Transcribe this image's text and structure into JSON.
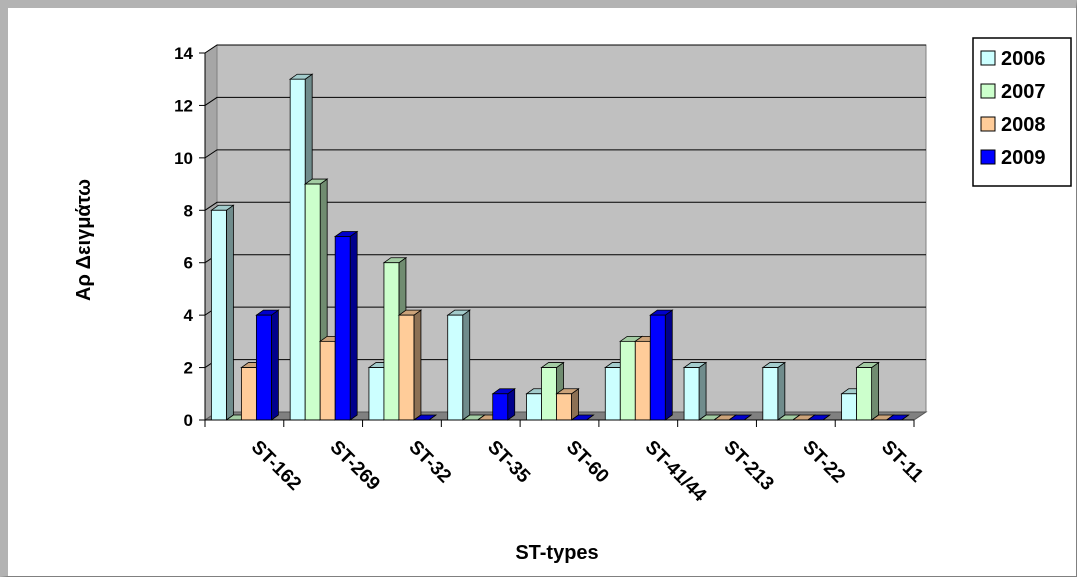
{
  "chart_data": {
    "type": "bar",
    "style": "3d-clustered-column",
    "categories": [
      "ST-162",
      "ST-269",
      "ST-32",
      "ST-35",
      "ST-60",
      "ST-41/44",
      "ST-213",
      "ST-22",
      "ST-11"
    ],
    "series": [
      {
        "name": "2006",
        "values": [
          8,
          13,
          2,
          4,
          1,
          2,
          2,
          2,
          1
        ],
        "color": "#ccffff"
      },
      {
        "name": "2007",
        "values": [
          0,
          9,
          6,
          0,
          2,
          3,
          0,
          0,
          2
        ],
        "color": "#ccffcc"
      },
      {
        "name": "2008",
        "values": [
          2,
          3,
          4,
          0,
          1,
          3,
          0,
          0,
          0
        ],
        "color": "#ffcc99"
      },
      {
        "name": "2009",
        "values": [
          4,
          7,
          0,
          1,
          0,
          4,
          0,
          0,
          0
        ],
        "color": "#0000ff"
      }
    ],
    "xlabel": "ST-types",
    "ylabel": "Αρ Δειγμάτω",
    "ylim": [
      0,
      14
    ],
    "yticks": [
      0,
      2,
      4,
      6,
      8,
      10,
      12,
      14
    ],
    "grid": true,
    "legend": "top-right",
    "plot_background": "#c0c0c0",
    "floor_color": "#808080"
  }
}
